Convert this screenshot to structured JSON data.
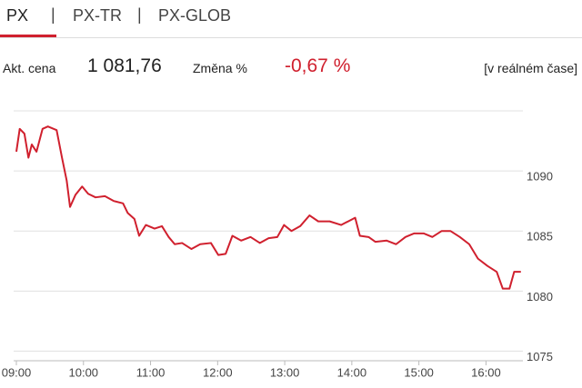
{
  "tabs": [
    "PX",
    "PX-TR",
    "PX-GLOB"
  ],
  "info": {
    "price_label": "Akt. cena",
    "price": "1 081,76",
    "change_label": "Změna %",
    "change": "-0,67 %",
    "realtime": "[v reálném čase]"
  },
  "chart_data": {
    "type": "line",
    "x": [
      9.0,
      9.05,
      9.12,
      9.18,
      9.23,
      9.3,
      9.39,
      9.47,
      9.6,
      9.68,
      9.75,
      9.8,
      9.88,
      9.98,
      10.07,
      10.18,
      10.32,
      10.45,
      10.59,
      10.66,
      10.76,
      10.83,
      10.93,
      11.06,
      11.17,
      11.27,
      11.36,
      11.47,
      11.61,
      11.74,
      11.9,
      12.01,
      12.12,
      12.22,
      12.35,
      12.49,
      12.63,
      12.76,
      12.89,
      12.99,
      13.1,
      13.23,
      13.37,
      13.5,
      13.67,
      13.84,
      14.05,
      14.12,
      14.25,
      14.35,
      14.52,
      14.66,
      14.8,
      14.93,
      15.07,
      15.2,
      15.34,
      15.47,
      15.61,
      15.75,
      15.88,
      16.02,
      16.16,
      16.25,
      16.35,
      16.42,
      16.52
    ],
    "series": [
      {
        "color": "#d0202e",
        "values": [
          1091.6,
          1093.5,
          1093.1,
          1091.1,
          1092.2,
          1091.6,
          1093.5,
          1093.7,
          1093.4,
          1091.1,
          1089.2,
          1087.0,
          1088.0,
          1088.7,
          1088.1,
          1087.8,
          1087.9,
          1087.5,
          1087.3,
          1086.5,
          1086.0,
          1084.6,
          1085.5,
          1085.2,
          1085.4,
          1084.5,
          1083.9,
          1084.0,
          1083.5,
          1083.9,
          1084.0,
          1083.0,
          1083.1,
          1084.6,
          1084.2,
          1084.5,
          1084.0,
          1084.4,
          1084.5,
          1085.5,
          1085.0,
          1085.4,
          1086.3,
          1085.8,
          1085.8,
          1085.5,
          1086.1,
          1084.6,
          1084.5,
          1084.1,
          1084.2,
          1083.9,
          1084.5,
          1084.8,
          1084.8,
          1084.5,
          1085.0,
          1085.0,
          1084.5,
          1083.9,
          1082.7,
          1082.1,
          1081.6,
          1080.2,
          1080.2,
          1081.6,
          1081.6
        ]
      }
    ],
    "xlim": [
      9,
      16.55
    ],
    "xticks": [
      {
        "value": 9,
        "label": "09:00"
      },
      {
        "value": 10,
        "label": "10:00"
      },
      {
        "value": 11,
        "label": "11:00"
      },
      {
        "value": 12,
        "label": "12:00"
      },
      {
        "value": 13,
        "label": "13:00"
      },
      {
        "value": 14,
        "label": "14:00"
      },
      {
        "value": 15,
        "label": "15:00"
      },
      {
        "value": 16,
        "label": "16:00"
      }
    ],
    "ylim": [
      1074.2,
      1095
    ],
    "yticks": [
      1075,
      1080,
      1085,
      1090
    ],
    "grid": true
  }
}
